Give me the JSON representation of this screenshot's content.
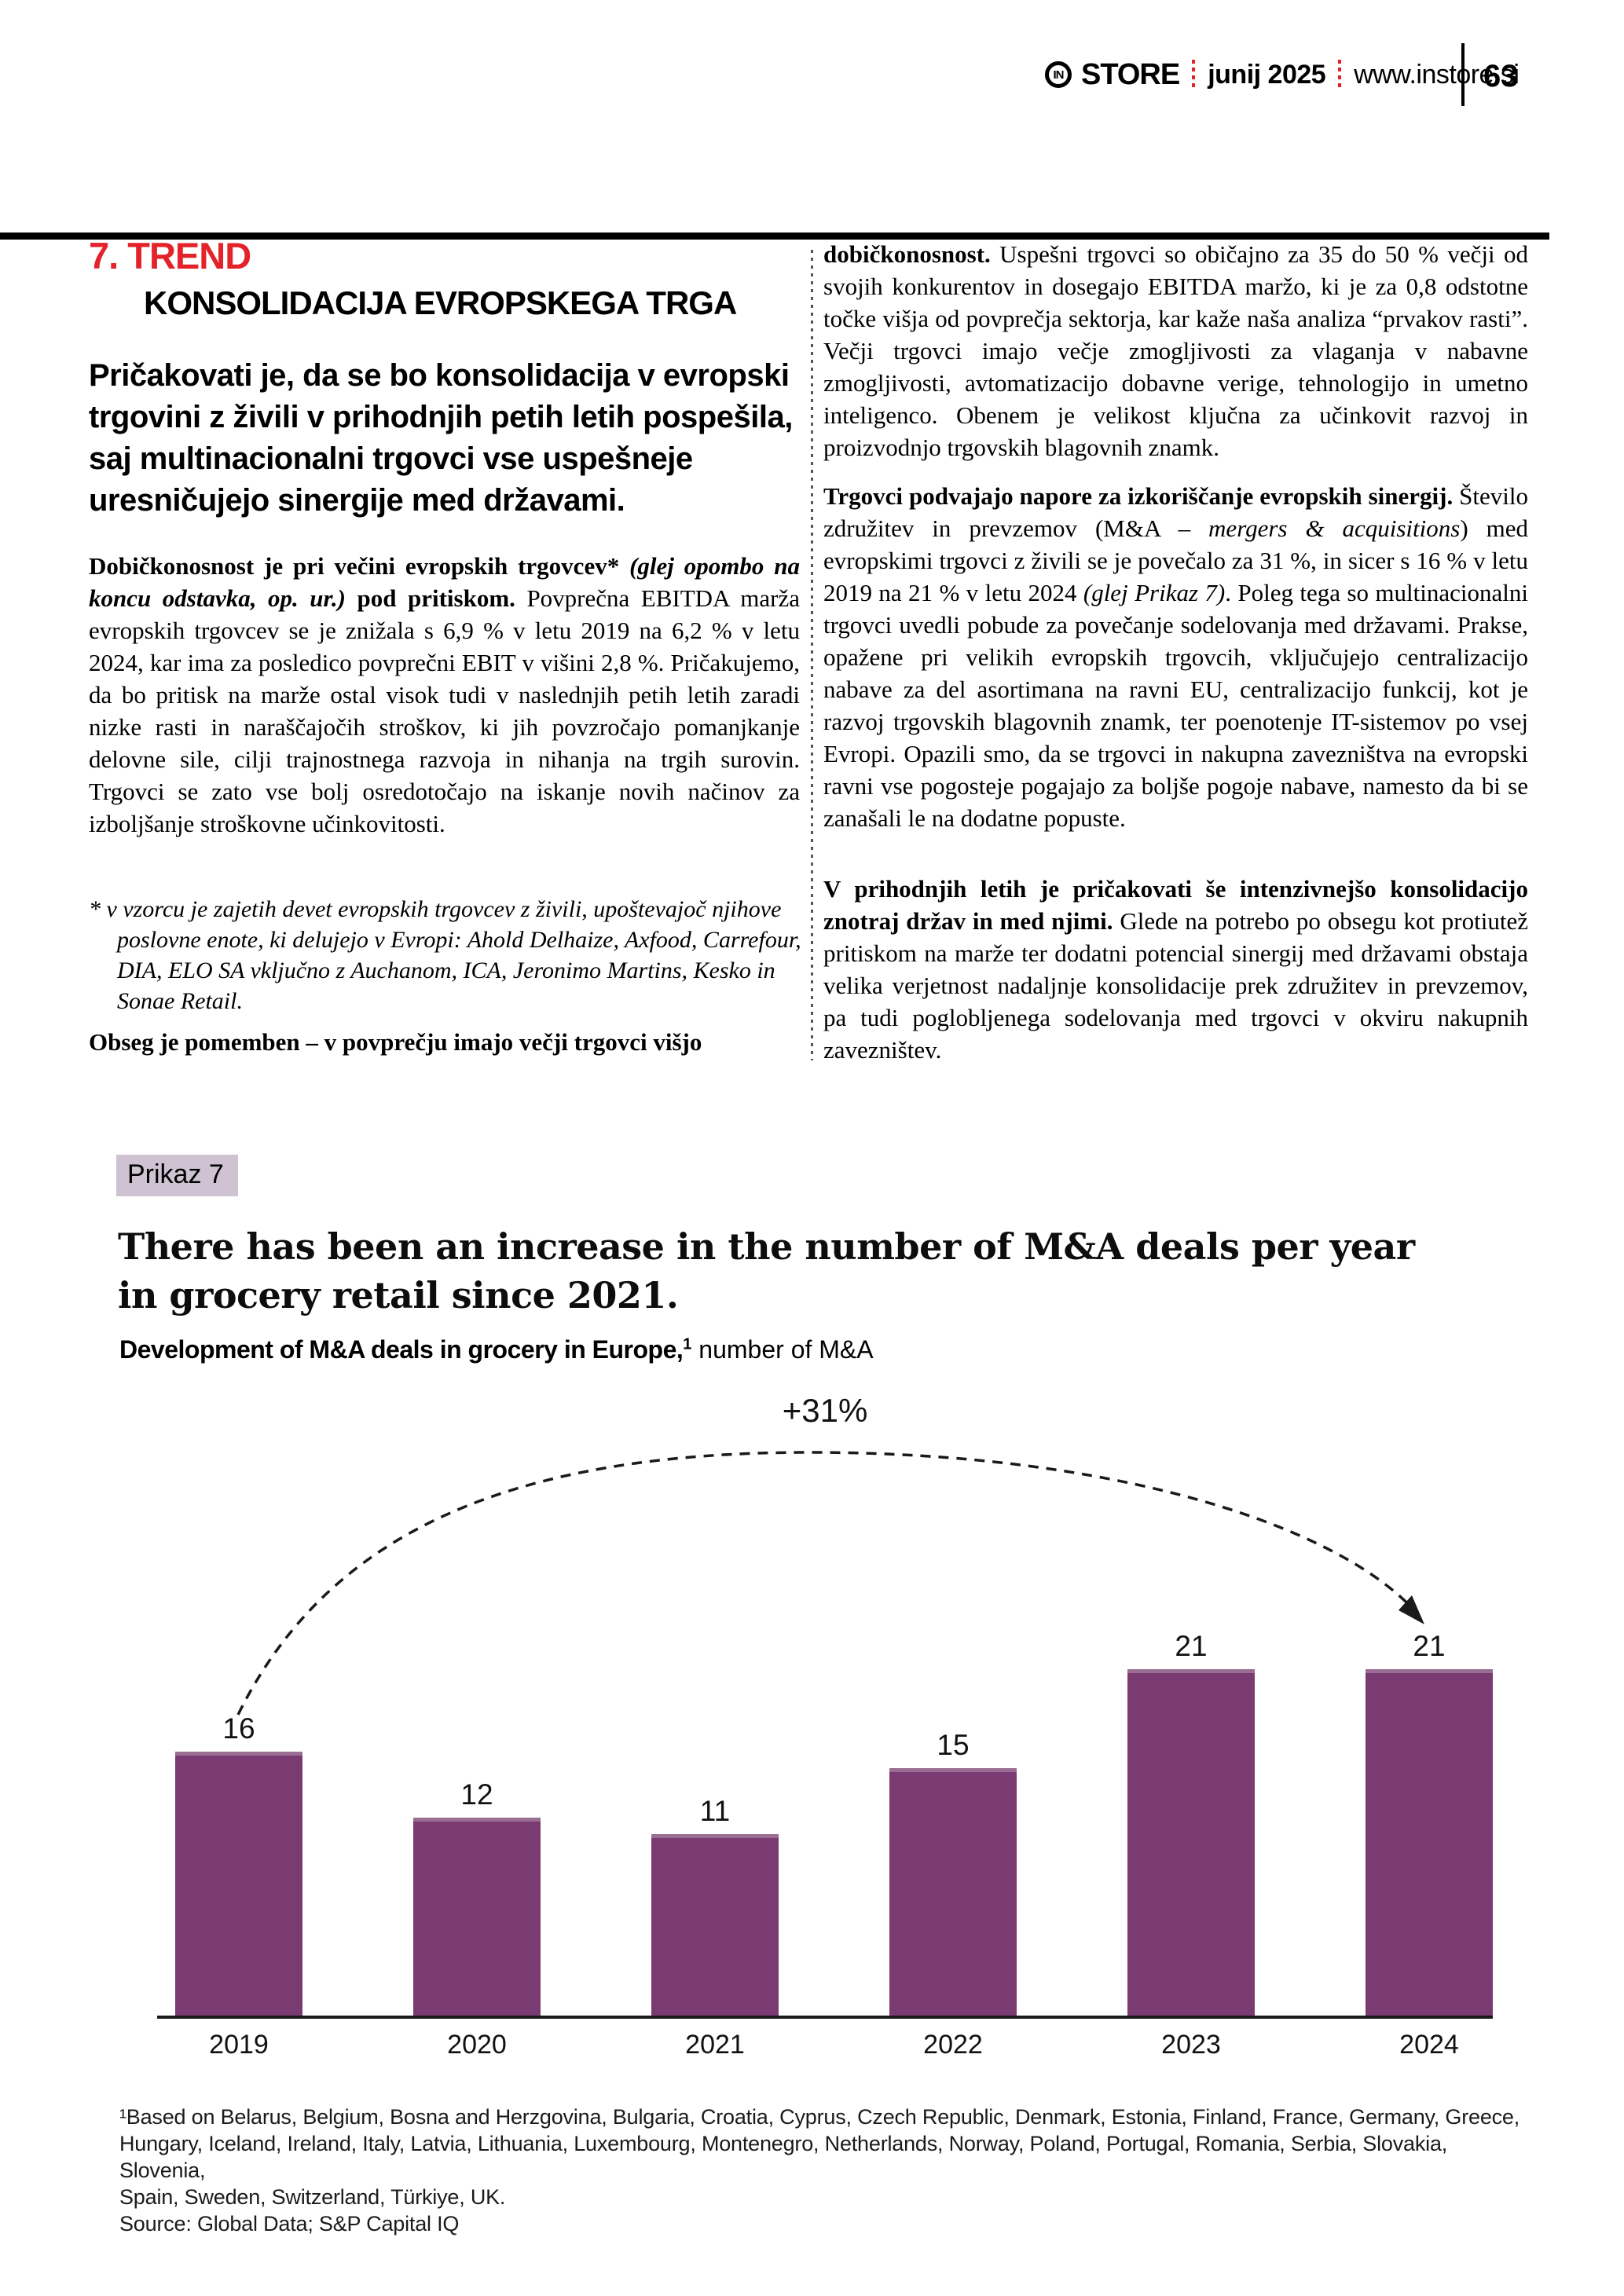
{
  "header": {
    "logo_in": "IN",
    "brand": "STORE",
    "issue": "junij 2025",
    "website": "www.instore.si",
    "page_number": "63"
  },
  "article": {
    "kicker": "7. TREND",
    "kicker_sub": "KONSOLIDACIJA EVROPSKEGA TRGA",
    "lede": "Pričakovati je, da se bo konsolidacija v evropski trgovini z živili v prihodnjih petih letih pospešila, saj multinacionalni trgovci vse uspešneje uresničujejo sinergije med državami.",
    "left_p1": [
      {
        "s": "b",
        "t": "Dobičkonosnost je pri večini evropskih trgovcev* "
      },
      {
        "s": "bi",
        "t": "(glej opombo na koncu odstavka, op. ur.) "
      },
      {
        "s": "b",
        "t": "pod pritiskom. "
      },
      {
        "s": "",
        "t": "Povprečna EBITDA marža evropskih trgovcev se je znižala s 6,9 % v letu 2019 na 6,2 % v letu 2024, kar ima za posledico povprečni EBIT v višini 2,8 %. Pričakujemo, da bo pritisk na marže ostal visok tudi v naslednjih petih letih zaradi nizke rasti in naraščajočih stroškov, ki jih povzročajo pomanjkanje delovne sile, cilji trajnostnega razvoja in nihanja na trgih surovin. Trgovci se zato vse bolj osredotočajo na iskanje novih načinov za izboljšanje stroškovne učinkovitosti."
      }
    ],
    "left_p2": [
      {
        "s": "i",
        "t": "* v vzorcu je zajetih devet evropskih trgovcev z živili, upoštevajoč njihove poslovne enote, ki delujejo v Evropi: Ahold Delhaize, Axfood, Carrefour, DIA, ELO SA vključno z Auchanom, ICA, Jeronimo Martins, Kesko in Sonae Retail."
      }
    ],
    "left_p3": [
      {
        "s": "b",
        "t": "Obseg je pomemben – v povprečju imajo večji trgovci višjo"
      }
    ],
    "right_p1": [
      {
        "s": "b",
        "t": "dobičkonosnost. "
      },
      {
        "s": "",
        "t": "Uspešni trgovci so običajno za 35 do 50 % večji od svojih konkurentov in dosegajo EBITDA maržo, ki je za 0,8 odstotne točke višja od povprečja sektorja, kar kaže naša analiza “prvakov rasti”. Večji trgovci imajo večje zmogljivosti za vlaganja v nabavne zmogljivosti, avtomatizacijo dobavne verige, tehnologijo in umetno inteligenco. Obenem je velikost ključna za učinkovit razvoj in proizvodnjo trgovskih blagovnih znamk."
      }
    ],
    "right_p2": [
      {
        "s": "b",
        "t": "Trgovci podvajajo napore za izkoriščanje evropskih sinergij. "
      },
      {
        "s": "",
        "t": "Število združitev in prevzemov (M&A – "
      },
      {
        "s": "i",
        "t": "mergers & acquisitions"
      },
      {
        "s": "",
        "t": ") med evropskimi trgovci z živili se je povečalo za 31 %, in sicer s 16 % v letu 2019 na 21 % v letu 2024 "
      },
      {
        "s": "i",
        "t": "(glej Prikaz 7)"
      },
      {
        "s": "",
        "t": ". Poleg tega so multinacionalni trgovci uvedli pobude za povečanje sodelovanja med državami. Prakse, opažene pri velikih evropskih trgovcih, vključujejo centralizacijo nabave za del asortimana na ravni EU, centralizacijo funkcij, kot je razvoj trgovskih blagovnih znamk, ter poenotenje IT-sistemov po vsej Evropi. Opazili smo, da se trgovci in nakupna zavezništva na evropski ravni vse pogosteje pogajajo za boljše pogoje nabave, namesto da bi se zanašali le na dodatne popuste."
      }
    ],
    "right_p3": [
      {
        "s": "b",
        "t": "V prihodnjih letih je pričakovati še intenzivnejšo konsolidacijo znotraj držav in med njimi. "
      },
      {
        "s": "",
        "t": "Glede na potrebo po obsegu kot protiutež pritiskom na marže ter dodatni potencial sinergij med državami obstaja velika verjetnost nadaljnje konsolidacije prek združitev in prevzemov, pa tudi poglobljenega sodelovanja med trgovci v okviru nakupnih zavezništev."
      }
    ]
  },
  "exhibit": {
    "tag": "Prikaz 7",
    "title_line1": "There has been an increase in the number of M&A deals per year",
    "title_line2": "in grocery retail since 2021.",
    "subtitle_bold": "Development of M&A deals in grocery in Europe,",
    "subtitle_sup": "1",
    "subtitle_regular": " number of M&A",
    "footnote_lines": [
      "¹Based on Belarus, Belgium, Bosna and Herzgovina, Bulgaria, Croatia, Cyprus, Czech Republic, Denmark, Estonia, Finland, France, Germany, Greece,",
      "Hungary, Iceland, Ireland, Italy, Latvia, Lithuania, Luxembourg, Montenegro, Netherlands, Norway, Poland, Portugal, Romania, Serbia, Slovakia, Slovenia,",
      "Spain, Sweden, Switzerland, Türkiye, UK."
    ],
    "source": "Source: Global Data; S&P Capital IQ"
  },
  "chart_data": {
    "type": "bar",
    "title": "There has been an increase in the number of M&A deals per year in grocery retail since 2021.",
    "subtitle": "Development of M&A deals in grocery in Europe,¹ number of M&A",
    "categories": [
      "2019",
      "2020",
      "2021",
      "2022",
      "2023",
      "2024"
    ],
    "values": [
      16,
      12,
      11,
      15,
      21,
      21
    ],
    "annotation": "+31%",
    "annotation_note": "dashed arc arrow from 2019 bar to 2024 bar",
    "bar_color": "#7a3b72",
    "ylabel": "number of M&A",
    "ylim": [
      0,
      22
    ],
    "grid": false,
    "value_labels": true,
    "legend": "none"
  },
  "colors": {
    "accent_red": "#e4222a",
    "bar_purple": "#7a3b72",
    "exhibit_tag_bg": "#cfc2d2"
  }
}
